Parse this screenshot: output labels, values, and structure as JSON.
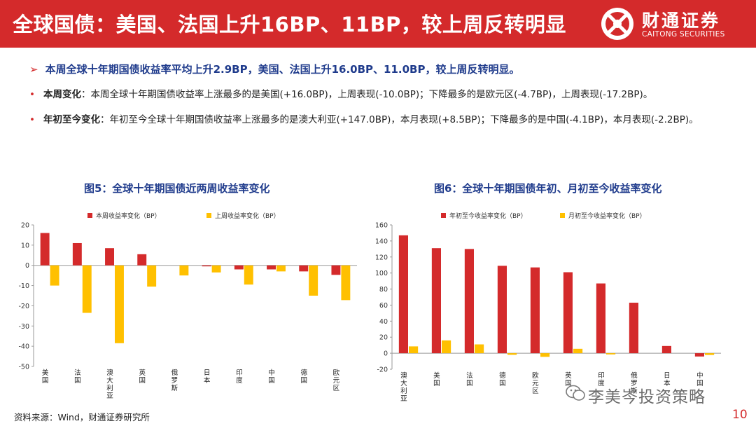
{
  "header": {
    "title": "全球国债：美国、法国上升16BP、11BP，较上周反转明显"
  },
  "logo": {
    "cn": "财通证券",
    "en": "CAITONG SECURITIES"
  },
  "summary": "本周全球十年期国债收益率平均上升2.9BP，美国、法国上升16.0BP、11.0BP，较上周反转明显。",
  "bullets": [
    {
      "label": "本周变化",
      "text": "：本周全球十年期国债收益率上涨最多的是美国(+16.0BP)，上周表现(-10.0BP)；下降最多的是欧元区(-4.7BP)，上周表现(-17.2BP)。"
    },
    {
      "label": "年初至今变化",
      "text": "：年初至今全球十年期国债收益率上涨最多的是澳大利亚(+147.0BP)，本月表现(+8.5BP)；下降最多的是中国(-4.1BP)，本月表现(-2.2BP)。"
    }
  ],
  "colors": {
    "red": "#d42a2b",
    "yellow": "#ffc000",
    "navy": "#1f3b8c"
  },
  "chart_data": [
    {
      "type": "bar",
      "title": "图5：全球十年期国债近两周收益率变化",
      "categories": [
        "美国",
        "法国",
        "澳大利亚",
        "英国",
        "俄罗斯",
        "日本",
        "印度",
        "中国",
        "德国",
        "欧元区"
      ],
      "series": [
        {
          "name": "本周收益率变化（BP）",
          "color": "#d42a2b",
          "values": [
            16.0,
            11.0,
            8.5,
            5.5,
            0,
            -0.5,
            -2.0,
            -2.0,
            -3.0,
            -4.7
          ]
        },
        {
          "name": "上周收益率变化（BP）",
          "color": "#ffc000",
          "values": [
            -10.0,
            -23.5,
            -38.5,
            -10.5,
            -5.0,
            -3.5,
            -9.5,
            -3.0,
            -15.0,
            -17.2
          ]
        }
      ],
      "ylim": [
        -50,
        20
      ],
      "yticks": [
        20,
        10,
        0,
        -10,
        -20,
        -30,
        -40,
        -50
      ],
      "legend": "top",
      "grid": false
    },
    {
      "type": "bar",
      "title": "图6：全球十年期国债年初、月初至今收益率变化",
      "categories": [
        "澳大利亚",
        "美国",
        "法国",
        "德国",
        "欧元区",
        "英国",
        "印度",
        "俄罗斯",
        "日本",
        "中国"
      ],
      "series": [
        {
          "name": "年初至今收益率变化（BP）",
          "color": "#d42a2b",
          "values": [
            147.0,
            131.0,
            130.0,
            109.0,
            107.0,
            101.0,
            87.0,
            63.0,
            9.0,
            -4.1
          ]
        },
        {
          "name": "月初至今收益率变化（BP）",
          "color": "#ffc000",
          "values": [
            8.5,
            16.0,
            11.0,
            -2.0,
            -4.5,
            5.5,
            -1.5,
            0,
            0,
            -2.2
          ]
        }
      ],
      "ylim": [
        -20,
        160
      ],
      "yticks": [
        160,
        140,
        120,
        100,
        80,
        60,
        40,
        20,
        0,
        -20
      ],
      "legend": "top",
      "grid": false
    }
  ],
  "footer": {
    "source": "资料来源：Wind，财通证券研究所",
    "watermark": "李美岑投资策略",
    "page": "10"
  }
}
